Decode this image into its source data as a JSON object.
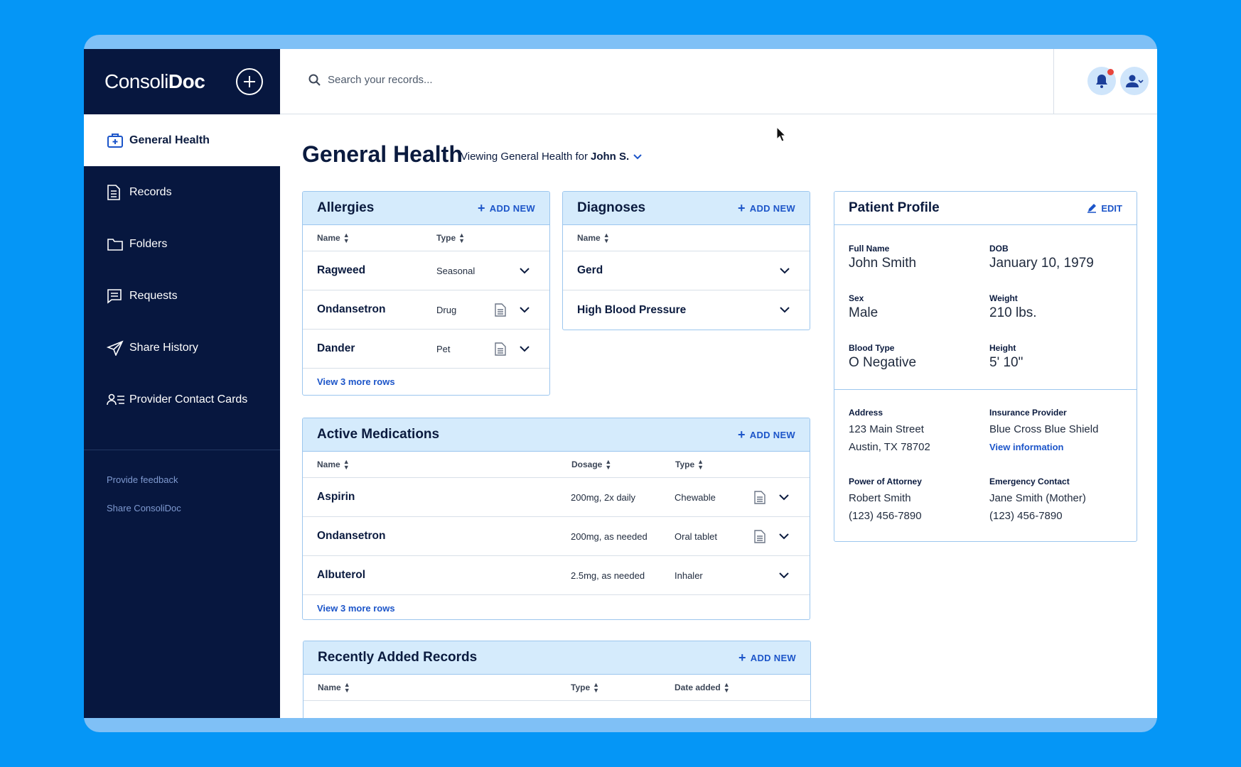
{
  "brand": {
    "logo_light": "Consoli",
    "logo_bold": "Doc"
  },
  "sidebar": {
    "items": [
      {
        "label": "General Health",
        "icon": "medical-kit-icon"
      },
      {
        "label": "Records",
        "icon": "document-icon"
      },
      {
        "label": "Folders",
        "icon": "folder-icon"
      },
      {
        "label": "Requests",
        "icon": "request-icon"
      },
      {
        "label": "Share History",
        "icon": "send-icon"
      },
      {
        "label": "Provider Contact Cards",
        "icon": "contact-card-icon"
      }
    ],
    "links": [
      "Provide feedback",
      "Share ConsoliDoc"
    ]
  },
  "search": {
    "placeholder": "Search your records..."
  },
  "page": {
    "title": "General Health",
    "viewing_prefix": "Viewing General Health for",
    "viewing_name": "John S."
  },
  "allergies": {
    "title": "Allergies",
    "add_label": "ADD NEW",
    "columns": [
      "Name",
      "Type"
    ],
    "rows": [
      {
        "name": "Ragweed",
        "type": "Seasonal"
      },
      {
        "name": "Ondansetron",
        "type": "Drug"
      },
      {
        "name": "Dander",
        "type": "Pet"
      }
    ],
    "more": "View 3 more rows"
  },
  "diagnoses": {
    "title": "Diagnoses",
    "add_label": "ADD NEW",
    "columns": [
      "Name"
    ],
    "rows": [
      {
        "name": "Gerd"
      },
      {
        "name": "High Blood Pressure"
      }
    ]
  },
  "medications": {
    "title": "Active Medications",
    "add_label": "ADD NEW",
    "columns": [
      "Name",
      "Dosage",
      "Type"
    ],
    "rows": [
      {
        "name": "Aspirin",
        "dosage": "200mg, 2x daily",
        "type": "Chewable"
      },
      {
        "name": "Ondansetron",
        "dosage": "200mg, as needed",
        "type": "Oral tablet"
      },
      {
        "name": "Albuterol",
        "dosage": "2.5mg, as needed",
        "type": "Inhaler"
      }
    ],
    "more": "View 3 more rows"
  },
  "records": {
    "title": "Recently Added Records",
    "add_label": "ADD NEW",
    "columns": [
      "Name",
      "Type",
      "Date added"
    ]
  },
  "profile": {
    "title": "Patient Profile",
    "edit_label": "EDIT",
    "full_name_label": "Full Name",
    "full_name": "John Smith",
    "dob_label": "DOB",
    "dob": "January 10, 1979",
    "sex_label": "Sex",
    "sex": "Male",
    "weight_label": "Weight",
    "weight": "210 lbs.",
    "blood_label": "Blood Type",
    "blood": "O Negative",
    "height_label": "Height",
    "height": "5' 10\"",
    "address_label": "Address",
    "address_1": "123 Main Street",
    "address_2": "Austin, TX 78702",
    "insurance_label": "Insurance Provider",
    "insurance": "Blue Cross Blue Shield",
    "insurance_link": "View information",
    "poa_label": "Power of Attorney",
    "poa_name": "Robert Smith",
    "poa_phone": "(123) 456-7890",
    "emergency_label": "Emergency Contact",
    "emergency_name": "Jane Smith (Mother)",
    "emergency_phone": "(123) 456-7890"
  },
  "colors": {
    "background": "#0596f6",
    "sidebar": "#07173f",
    "accent": "#1c55c9",
    "card_header": "#d5ebfc",
    "notification": "#e8453c"
  }
}
